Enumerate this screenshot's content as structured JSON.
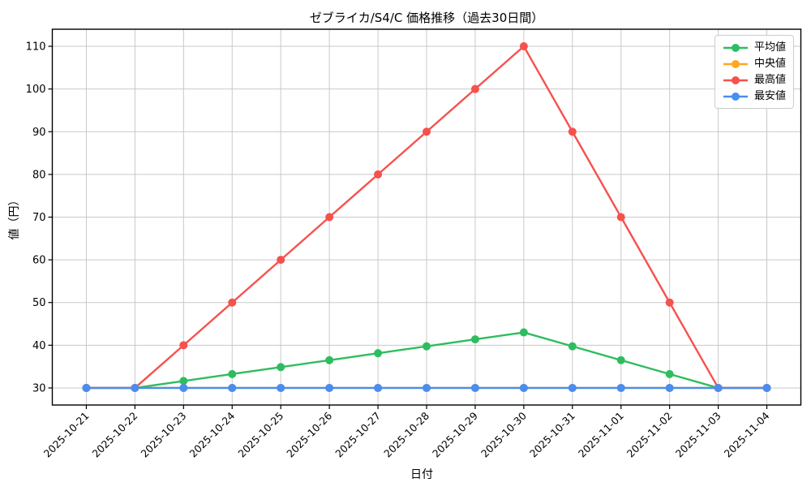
{
  "chart_data": {
    "type": "line",
    "title": "ゼブライカ/S4/C 価格推移（過去30日間）",
    "xlabel": "日付",
    "ylabel": "値（円）",
    "categories": [
      "2025-10-21",
      "2025-10-22",
      "2025-10-23",
      "2025-10-24",
      "2025-10-25",
      "2025-10-26",
      "2025-10-27",
      "2025-10-28",
      "2025-10-29",
      "2025-10-30",
      "2025-10-31",
      "2025-11-01",
      "2025-11-02",
      "2025-11-03",
      "2025-11-04"
    ],
    "yticks": [
      30,
      40,
      50,
      60,
      70,
      80,
      90,
      100,
      110
    ],
    "ylim": [
      26,
      114
    ],
    "xlim": [
      -0.7,
      14.7
    ],
    "grid": true,
    "legend_position": "upper right",
    "series": [
      {
        "key": "average",
        "name": "平均値",
        "color": "#2ebd5e",
        "values": [
          30,
          30,
          31.63,
          33.25,
          34.88,
          36.5,
          38.13,
          39.75,
          41.38,
          43,
          39.75,
          36.5,
          33.25,
          30,
          30
        ]
      },
      {
        "key": "median",
        "name": "中央値",
        "color": "#ffa726",
        "values": [
          30,
          30,
          30,
          30,
          30,
          30,
          30,
          30,
          30,
          30,
          30,
          30,
          30,
          30,
          30
        ]
      },
      {
        "key": "max",
        "name": "最高値",
        "color": "#f6514d",
        "values": [
          30,
          30,
          40,
          50,
          60,
          70,
          80,
          90,
          100,
          110,
          90,
          70,
          50,
          30,
          30
        ]
      },
      {
        "key": "min",
        "name": "最安値",
        "color": "#4a8df0",
        "values": [
          30,
          30,
          30,
          30,
          30,
          30,
          30,
          30,
          30,
          30,
          30,
          30,
          30,
          30,
          30
        ]
      }
    ],
    "colors": {
      "grid": "#c9c9c9",
      "axis": "#000000",
      "text": "#000000"
    }
  }
}
